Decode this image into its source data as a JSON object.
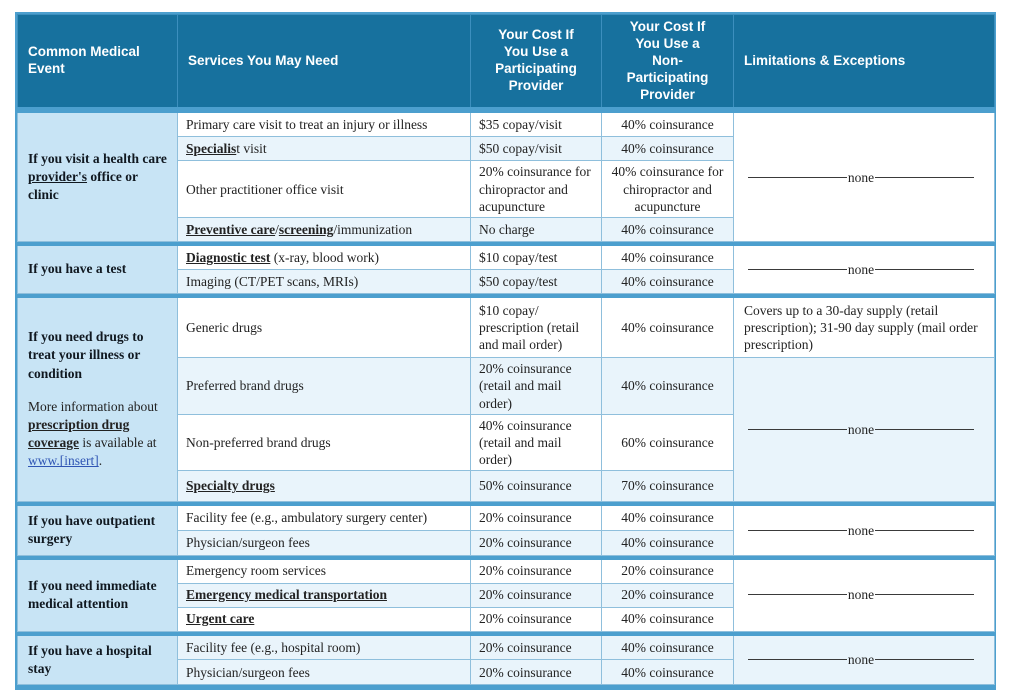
{
  "colors": {
    "header_bg": "#17719E",
    "header_text": "#FFFFFF",
    "event_cell_bg": "#C8E4F5",
    "row_stripe_bg": "#E9F4FB",
    "section_divider": "#4C9FCE",
    "cell_border": "#8FBFDC",
    "link_color": "#2F55B4",
    "body_text": "#222222"
  },
  "headers": {
    "event": "Common Medical Event",
    "services": "Services You May Need",
    "participating": "Your Cost If\nYou Use a\nParticipating\nProvider",
    "non_participating": "Your Cost If\nYou Use a\nNon-\nParticipating\nProvider",
    "limitations": "Limitations & Exceptions"
  },
  "sections": [
    {
      "event": {
        "pre": "If you visit a health care ",
        "term": "provider's",
        "post": " office or clinic"
      },
      "rows": [
        {
          "n1": "Primary care visit to treat an injury or illness",
          "part": "$35 copay/visit",
          "nonpart": "40% coinsurance"
        },
        {
          "b1": "Specialis",
          "n1": "t visit",
          "part": "$50 copay/visit",
          "nonpart": "40% coinsurance"
        },
        {
          "n1": "Other practitioner office visit",
          "part": "20% coinsurance for chiropractor and acupuncture",
          "nonpart": "40% coinsurance for chiropractor and acupuncture"
        },
        {
          "b1": "Preventive care",
          "n1": "/",
          "b2": "screening",
          "n2": "/immunization",
          "part": "No charge",
          "nonpart": "40% coinsurance"
        }
      ],
      "limitation": "none"
    },
    {
      "event": {
        "pre": "If you have a test"
      },
      "rows": [
        {
          "b1": "Diagnostic test",
          "n1": " (x-ray, blood work)",
          "part": "$10 copay/test",
          "nonpart": "40% coinsurance"
        },
        {
          "n1": "Imaging (CT/PET scans, MRIs)",
          "part": "$50 copay/test",
          "nonpart": "40% coinsurance"
        }
      ],
      "limitation": "none"
    },
    {
      "event": {
        "pre": "If you need drugs to treat your illness or condition",
        "note_n1": "More information about ",
        "note_b1": "prescription drug coverage",
        "note_n2": " is available at ",
        "note_link": "www.[insert]",
        "note_n3": "."
      },
      "rows": [
        {
          "n1": "Generic drugs",
          "part": "$10 copay/\nprescription (retail\nand mail order)",
          "nonpart": "40% coinsurance",
          "limit": "Covers up to a 30-day supply (retail prescription); 31-90 day supply (mail order prescription)"
        },
        {
          "n1": "Preferred brand drugs",
          "part": "20% coinsurance (retail and mail order)",
          "nonpart": "40% coinsurance"
        },
        {
          "n1": "Non-preferred brand drugs",
          "part": "40% coinsurance (retail and mail order)",
          "nonpart": "60% coinsurance"
        },
        {
          "b1": "Specialty drugs",
          "part": "50% coinsurance",
          "nonpart": "70% coinsurance"
        }
      ],
      "limitation": "none"
    },
    {
      "event": {
        "pre": "If you have outpatient surgery"
      },
      "rows": [
        {
          "n1": "Facility fee (e.g., ambulatory surgery center)",
          "part": "20% coinsurance",
          "nonpart": "40% coinsurance"
        },
        {
          "n1": "Physician/surgeon fees",
          "part": "20% coinsurance",
          "nonpart": "40% coinsurance"
        }
      ],
      "limitation": "none"
    },
    {
      "event": {
        "pre": "If you need immediate medical attention"
      },
      "rows": [
        {
          "n1": "Emergency room services",
          "part": "20% coinsurance",
          "nonpart": "20% coinsurance"
        },
        {
          "b1": "Emergency medical transportation",
          "part": "20% coinsurance",
          "nonpart": "20% coinsurance"
        },
        {
          "b1": "Urgent care",
          "part": "20% coinsurance",
          "nonpart": "40% coinsurance"
        }
      ],
      "limitation": "none"
    },
    {
      "event": {
        "pre": "If you have a hospital stay"
      },
      "rows": [
        {
          "n1": "Facility fee (e.g., hospital room)",
          "part": "20% coinsurance",
          "nonpart": "40% coinsurance"
        },
        {
          "n1": "Physician/surgeon fees",
          "part": "20% coinsurance",
          "nonpart": "40% coinsurance"
        }
      ],
      "limitation": "none"
    }
  ]
}
